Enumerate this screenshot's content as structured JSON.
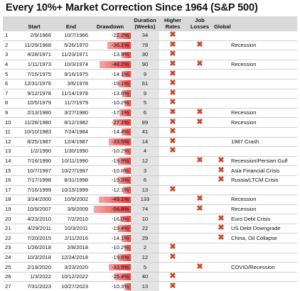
{
  "title": "Every 10%+ Market Correction Since 1964 (S&P 500)",
  "headers": {
    "start": "Start",
    "end": "End",
    "drawdown": "Drawdown",
    "duration": "Duration (Weeks)",
    "higher_rates": "Higher Rates",
    "job_losses": "Job Losses",
    "global": "Global"
  },
  "colors": {
    "bar_light": "#f8a5a5",
    "bar_dark": "#e93d3d",
    "cross": "#c8482e",
    "header_bg": "#d9d9d9"
  },
  "rows": [
    {
      "n": "1",
      "start": "2/9/1966",
      "end": "10/7/1966",
      "dd": "-22.2%",
      "ddv": 22.2,
      "dur": "34",
      "rates": true,
      "jobs": false,
      "glob": false,
      "note": ""
    },
    {
      "n": "2",
      "start": "11/29/1968",
      "end": "5/26/1970",
      "dd": "-36.1%",
      "ddv": 36.1,
      "dur": "78",
      "rates": true,
      "jobs": true,
      "glob": false,
      "note": "Recession"
    },
    {
      "n": "3",
      "start": "4/28/1971",
      "end": "11/23/1971",
      "dd": "-13.9%",
      "ddv": 13.9,
      "dur": "30",
      "rates": true,
      "jobs": false,
      "glob": false,
      "note": ""
    },
    {
      "n": "4",
      "start": "1/11/1973",
      "end": "10/3/1974",
      "dd": "-48.2%",
      "ddv": 48.2,
      "dur": "90",
      "rates": true,
      "jobs": true,
      "glob": false,
      "note": "Recession"
    },
    {
      "n": "5",
      "start": "7/15/1975",
      "end": "9/16/1975",
      "dd": "-14.1%",
      "ddv": 14.1,
      "dur": "9",
      "rates": true,
      "jobs": false,
      "glob": false,
      "note": ""
    },
    {
      "n": "6",
      "start": "12/31/1976",
      "end": "3/6/1978",
      "dd": "-19.1%",
      "ddv": 19.1,
      "dur": "61",
      "rates": true,
      "jobs": false,
      "glob": false,
      "note": ""
    },
    {
      "n": "7",
      "start": "9/12/1978",
      "end": "11/14/1978",
      "dd": "-13.6%",
      "ddv": 13.6,
      "dur": "9",
      "rates": true,
      "jobs": false,
      "glob": false,
      "note": ""
    },
    {
      "n": "8",
      "start": "10/5/1979",
      "end": "11/7/1979",
      "dd": "-10.2%",
      "ddv": 10.2,
      "dur": "5",
      "rates": true,
      "jobs": false,
      "glob": false,
      "note": ""
    },
    {
      "n": "9",
      "start": "2/13/1980",
      "end": "3/27/1980",
      "dd": "-17.1%",
      "ddv": 17.1,
      "dur": "6",
      "rates": true,
      "jobs": true,
      "glob": false,
      "note": "Recession"
    },
    {
      "n": "10",
      "start": "11/28/1980",
      "end": "8/12/1982",
      "dd": "-27.1%",
      "ddv": 27.1,
      "dur": "89",
      "rates": true,
      "jobs": true,
      "glob": false,
      "note": "Recession"
    },
    {
      "n": "11",
      "start": "10/10/1983",
      "end": "7/24/1984",
      "dd": "-14.4%",
      "ddv": 14.4,
      "dur": "41",
      "rates": true,
      "jobs": false,
      "glob": false,
      "note": ""
    },
    {
      "n": "12",
      "start": "8/25/1987",
      "end": "12/4/1987",
      "dd": "-33.5%",
      "ddv": 33.5,
      "dur": "14",
      "rates": true,
      "jobs": false,
      "glob": false,
      "note": "1987 Crash"
    },
    {
      "n": "13",
      "start": "1/2/1990",
      "end": "1/30/1990",
      "dd": "-10.2%",
      "ddv": 10.2,
      "dur": "4",
      "rates": true,
      "jobs": false,
      "glob": false,
      "note": ""
    },
    {
      "n": "14",
      "start": "7/16/1990",
      "end": "10/11/1990",
      "dd": "-19.9%",
      "ddv": 19.9,
      "dur": "12",
      "rates": false,
      "jobs": true,
      "glob": true,
      "note": "Recession/Persian Gulf"
    },
    {
      "n": "15",
      "start": "10/7/1997",
      "end": "10/27/1997",
      "dd": "-10.8%",
      "ddv": 10.8,
      "dur": "3",
      "rates": false,
      "jobs": false,
      "glob": true,
      "note": "Asia Financial Crisis"
    },
    {
      "n": "16",
      "start": "7/17/1998",
      "end": "8/31/1998",
      "dd": "-19.3%",
      "ddv": 19.3,
      "dur": "6",
      "rates": false,
      "jobs": false,
      "glob": true,
      "note": "Russia/LTCM Crisis"
    },
    {
      "n": "17",
      "start": "7/16/1999",
      "end": "10/15/1999",
      "dd": "-12.1%",
      "ddv": 12.1,
      "dur": "13",
      "rates": true,
      "jobs": false,
      "glob": false,
      "note": ""
    },
    {
      "n": "18",
      "start": "3/24/2000",
      "end": "10/9/2002",
      "dd": "-49.1%",
      "ddv": 49.1,
      "dur": "133",
      "rates": false,
      "jobs": true,
      "glob": false,
      "note": "Recession"
    },
    {
      "n": "19",
      "start": "10/9/2007",
      "end": "3/9/2009",
      "dd": "-56.8%",
      "ddv": 56.8,
      "dur": "74",
      "rates": false,
      "jobs": true,
      "glob": false,
      "note": "Recession"
    },
    {
      "n": "20",
      "start": "4/23/2010",
      "end": "7/2/2010",
      "dd": "-16.0%",
      "ddv": 16.0,
      "dur": "10",
      "rates": false,
      "jobs": false,
      "glob": true,
      "note": "Euro Debt Crisis"
    },
    {
      "n": "21",
      "start": "4/29/2011",
      "end": "10/3/2011",
      "dd": "-19.4%",
      "ddv": 19.4,
      "dur": "22",
      "rates": false,
      "jobs": false,
      "glob": true,
      "note": "US Debt Downgrade"
    },
    {
      "n": "22",
      "start": "7/20/2015",
      "end": "2/11/2016",
      "dd": "-14.1%",
      "ddv": 14.1,
      "dur": "29",
      "rates": false,
      "jobs": false,
      "glob": true,
      "note": "China, Oil Collapse"
    },
    {
      "n": "23",
      "start": "1/26/2018",
      "end": "2/8/2018",
      "dd": "-10.2%",
      "ddv": 10.2,
      "dur": "2",
      "rates": true,
      "jobs": false,
      "glob": false,
      "note": ""
    },
    {
      "n": "24",
      "start": "10/3/2018",
      "end": "12/24/2018",
      "dd": "-19.6%",
      "ddv": 19.6,
      "dur": "12",
      "rates": true,
      "jobs": false,
      "glob": false,
      "note": ""
    },
    {
      "n": "25",
      "start": "2/19/2020",
      "end": "3/23/2020",
      "dd": "-33.9%",
      "ddv": 33.9,
      "dur": "5",
      "rates": false,
      "jobs": true,
      "glob": false,
      "note": "COVID/Recession"
    },
    {
      "n": "26",
      "start": "1/3/2022",
      "end": "10/12/2022",
      "dd": "-25.4%",
      "ddv": 25.4,
      "dur": "40",
      "rates": true,
      "jobs": false,
      "glob": false,
      "note": ""
    },
    {
      "n": "27",
      "start": "7/31/2023",
      "end": "10/27/2023",
      "dd": "-10.3%",
      "ddv": 10.3,
      "dur": "13",
      "rates": true,
      "jobs": false,
      "glob": false,
      "note": ""
    }
  ]
}
